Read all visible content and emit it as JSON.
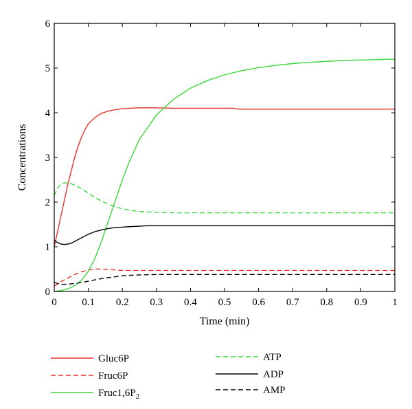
{
  "chart_data": {
    "type": "line",
    "title": "",
    "xlabel": "Time (min)",
    "ylabel": "Concentrations",
    "xlim": [
      0,
      1
    ],
    "ylim": [
      0,
      6
    ],
    "xticks": [
      0,
      0.1,
      0.2,
      0.3,
      0.4,
      0.5,
      0.6,
      0.7,
      0.8,
      0.9,
      1
    ],
    "xtick_labels": [
      "0",
      "0.1",
      "0.2",
      "0.3",
      "0.4",
      "0.5",
      "0.6",
      "0.7",
      "0.8",
      "0.9",
      "1"
    ],
    "yticks": [
      0,
      1,
      2,
      3,
      4,
      5,
      6
    ],
    "ytick_labels": [
      "0",
      "1",
      "2",
      "3",
      "4",
      "5",
      "6"
    ],
    "grid": false,
    "legend_position": "bottom",
    "series": [
      {
        "name": "Gluc6P",
        "color": "#e8312a",
        "dash": "solid",
        "x": [
          0,
          0.01,
          0.02,
          0.03,
          0.04,
          0.05,
          0.06,
          0.07,
          0.08,
          0.09,
          0.1,
          0.12,
          0.14,
          0.16,
          0.18,
          0.2,
          0.22,
          0.25,
          0.3,
          0.35,
          0.4,
          0.45,
          0.5,
          0.53,
          0.54,
          0.6,
          0.7,
          0.8,
          0.9,
          1.0
        ],
        "y": [
          1.0,
          1.35,
          1.7,
          2.05,
          2.4,
          2.7,
          3.0,
          3.25,
          3.45,
          3.62,
          3.75,
          3.9,
          3.99,
          4.04,
          4.07,
          4.09,
          4.1,
          4.11,
          4.11,
          4.1,
          4.1,
          4.1,
          4.1,
          4.1,
          4.08,
          4.08,
          4.08,
          4.08,
          4.08,
          4.08
        ]
      },
      {
        "name": "Fruc6P",
        "color": "#e8312a",
        "dash": "dashed",
        "x": [
          0,
          0.02,
          0.04,
          0.06,
          0.08,
          0.1,
          0.12,
          0.14,
          0.16,
          0.18,
          0.2,
          0.25,
          0.3,
          0.4,
          0.5,
          0.6,
          0.7,
          0.8,
          0.9,
          1.0
        ],
        "y": [
          0.12,
          0.22,
          0.3,
          0.38,
          0.44,
          0.48,
          0.5,
          0.5,
          0.49,
          0.48,
          0.47,
          0.47,
          0.47,
          0.47,
          0.47,
          0.47,
          0.47,
          0.47,
          0.47,
          0.47
        ]
      },
      {
        "name": "Fruc1,6P",
        "name_subscript": "2",
        "color": "#3ad63a",
        "dash": "solid",
        "x": [
          0,
          0.02,
          0.04,
          0.06,
          0.08,
          0.1,
          0.12,
          0.14,
          0.16,
          0.18,
          0.2,
          0.22,
          0.25,
          0.3,
          0.35,
          0.4,
          0.45,
          0.5,
          0.55,
          0.6,
          0.65,
          0.7,
          0.75,
          0.8,
          0.85,
          0.9,
          0.95,
          1.0
        ],
        "y": [
          0.0,
          0.02,
          0.06,
          0.13,
          0.25,
          0.45,
          0.75,
          1.15,
          1.6,
          2.05,
          2.5,
          2.9,
          3.4,
          3.95,
          4.3,
          4.55,
          4.72,
          4.85,
          4.94,
          5.01,
          5.06,
          5.1,
          5.13,
          5.15,
          5.17,
          5.18,
          5.19,
          5.2
        ]
      },
      {
        "name": "ATP",
        "color": "#3ad63a",
        "dash": "dashed",
        "x": [
          0,
          0.01,
          0.02,
          0.03,
          0.04,
          0.05,
          0.06,
          0.08,
          0.1,
          0.12,
          0.14,
          0.16,
          0.18,
          0.2,
          0.22,
          0.25,
          0.3,
          0.35,
          0.4,
          0.5,
          0.6,
          0.7,
          0.8,
          0.9,
          1.0
        ],
        "y": [
          2.15,
          2.32,
          2.4,
          2.43,
          2.43,
          2.41,
          2.38,
          2.3,
          2.2,
          2.1,
          2.02,
          1.95,
          1.89,
          1.85,
          1.82,
          1.79,
          1.77,
          1.76,
          1.76,
          1.76,
          1.76,
          1.76,
          1.76,
          1.76,
          1.76
        ]
      },
      {
        "name": "ADP",
        "color": "#000000",
        "dash": "solid",
        "x": [
          0,
          0.01,
          0.02,
          0.03,
          0.04,
          0.05,
          0.06,
          0.08,
          0.1,
          0.12,
          0.14,
          0.16,
          0.18,
          0.2,
          0.22,
          0.25,
          0.27,
          0.3,
          0.4,
          0.5,
          0.6,
          0.7,
          0.8,
          0.9,
          1.0
        ],
        "y": [
          1.15,
          1.09,
          1.06,
          1.05,
          1.06,
          1.08,
          1.12,
          1.2,
          1.28,
          1.34,
          1.38,
          1.41,
          1.43,
          1.44,
          1.45,
          1.46,
          1.47,
          1.47,
          1.47,
          1.47,
          1.47,
          1.47,
          1.47,
          1.47,
          1.47
        ]
      },
      {
        "name": "AMP",
        "color": "#000000",
        "dash": "dashed",
        "x": [
          0,
          0.02,
          0.04,
          0.06,
          0.08,
          0.1,
          0.12,
          0.14,
          0.16,
          0.18,
          0.2,
          0.22,
          0.25,
          0.3,
          0.4,
          0.5,
          0.6,
          0.7,
          0.8,
          0.9,
          1.0
        ],
        "y": [
          0.2,
          0.16,
          0.16,
          0.18,
          0.2,
          0.23,
          0.26,
          0.29,
          0.31,
          0.33,
          0.35,
          0.36,
          0.37,
          0.38,
          0.38,
          0.38,
          0.38,
          0.38,
          0.38,
          0.38,
          0.38
        ]
      }
    ]
  }
}
